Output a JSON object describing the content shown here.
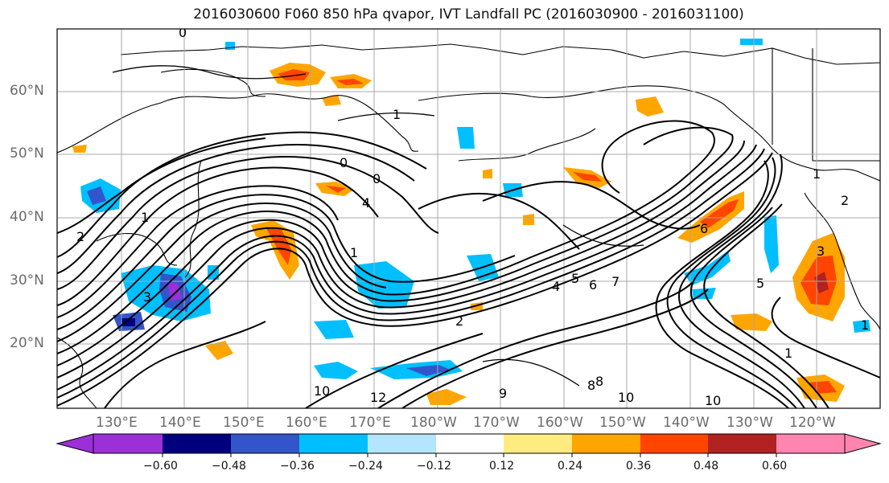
{
  "title": "2016030600 F060 850 hPa qvapor, IVT Landfall PC (2016030900 - 2016031100)",
  "lat_labels": [
    "60°N",
    "50°N",
    "40°N",
    "30°N",
    "20°N"
  ],
  "lon_labels": [
    "130°E",
    "140°E",
    "150°E",
    "160°E",
    "170°E",
    "180°W",
    "170°W",
    "160°W",
    "150°W",
    "140°W",
    "130°W",
    "120°W"
  ],
  "colorbar": {
    "ticks": [
      "−0.60",
      "−0.48",
      "−0.36",
      "−0.24",
      "−0.12",
      "0.12",
      "0.24",
      "0.36",
      "0.48",
      "0.60"
    ],
    "colors": [
      "#9b30d9",
      "#00007f",
      "#3355cc",
      "#00bfff",
      "#b3e5ff",
      "#ffffff",
      "#ffec80",
      "#ffa500",
      "#ff4500",
      "#b22222",
      "#ff85b0"
    ]
  },
  "contour_labels": [
    "0",
    "1",
    "0",
    "0",
    "4",
    "1",
    "1",
    "2",
    "3",
    "4",
    "5",
    "6",
    "7",
    "8",
    "2",
    "1",
    "10",
    "12",
    "10",
    "10",
    "8",
    "9",
    "1",
    "2",
    "6",
    "5",
    "3",
    "1"
  ]
}
